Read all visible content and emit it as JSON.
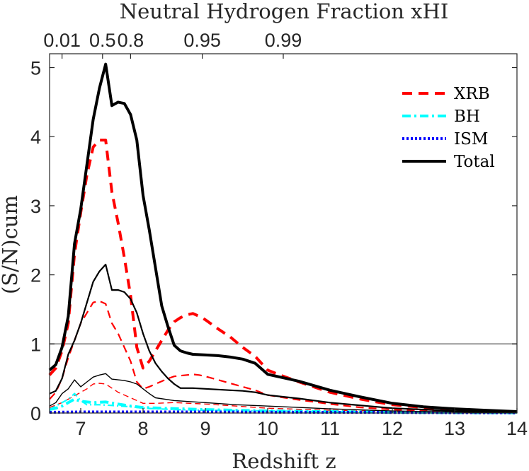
{
  "chart_data": {
    "type": "line",
    "title": "",
    "xlabel": "Redshift z",
    "ylabel": "(S/N)cum",
    "top_axis_label": "Neutral Hydrogen Fraction xHI",
    "xlim": [
      6.5,
      14
    ],
    "ylim": [
      0,
      5.2
    ],
    "x_ticks": [
      7,
      8,
      9,
      10,
      11,
      12,
      13,
      14
    ],
    "y_ticks": [
      0,
      1,
      2,
      3,
      4,
      5
    ],
    "top_ticks": [
      {
        "label": "0.01",
        "z": 6.7
      },
      {
        "label": "0.5",
        "z": 7.35
      },
      {
        "label": "0.8",
        "z": 7.8
      },
      {
        "label": "0.95",
        "z": 8.95
      },
      {
        "label": "0.99",
        "z": 10.25
      }
    ],
    "reference_line": {
      "y": 1,
      "color": "#999999"
    },
    "legend": {
      "placement": "top-right",
      "entries": [
        {
          "label": "XRB",
          "color": "#ff0000",
          "style": "dashed"
        },
        {
          "label": "BH",
          "color": "#00ffff",
          "style": "dashdot"
        },
        {
          "label": "ISM",
          "color": "#0000ff",
          "style": "dotted"
        },
        {
          "label": "Total",
          "color": "#000000",
          "style": "solid"
        }
      ]
    },
    "series": [
      {
        "name": "XRB",
        "variant": "thick",
        "color": "#ff0000",
        "style": "dashed",
        "x": [
          6.5,
          6.6,
          6.7,
          6.8,
          6.9,
          7.0,
          7.1,
          7.2,
          7.3,
          7.4,
          7.5,
          7.6,
          7.7,
          7.8,
          7.9,
          8.0,
          8.1,
          8.2,
          8.3,
          8.4,
          8.5,
          8.6,
          8.7,
          8.8,
          8.9,
          9.0,
          9.2,
          9.4,
          9.6,
          9.8,
          10.0,
          10.2,
          10.5,
          11.0,
          11.5,
          12.0,
          12.5,
          13.0,
          13.5,
          14.0
        ],
        "y": [
          0.55,
          0.65,
          0.9,
          1.3,
          2.3,
          2.9,
          3.45,
          3.85,
          3.95,
          3.95,
          3.2,
          2.75,
          2.25,
          1.7,
          0.95,
          0.65,
          0.75,
          0.9,
          1.05,
          1.2,
          1.32,
          1.38,
          1.42,
          1.44,
          1.4,
          1.35,
          1.22,
          1.1,
          0.95,
          0.82,
          0.62,
          0.55,
          0.45,
          0.3,
          0.2,
          0.12,
          0.08,
          0.05,
          0.03,
          0.01
        ]
      },
      {
        "name": "XRB",
        "variant": "thin",
        "color": "#ff0000",
        "style": "dashed",
        "x": [
          6.5,
          6.6,
          6.7,
          6.8,
          6.9,
          7.0,
          7.1,
          7.2,
          7.3,
          7.4,
          7.5,
          7.6,
          7.7,
          7.8,
          7.9,
          8.0,
          8.1,
          8.2,
          8.3,
          8.4,
          8.5,
          8.6,
          8.7,
          8.8,
          8.9,
          9.0,
          9.2,
          9.4,
          9.6,
          9.8,
          10.0,
          10.2,
          10.5,
          11.0,
          11.5,
          12.0,
          12.5,
          13.0,
          13.5,
          14.0
        ],
        "y": [
          0.2,
          0.3,
          0.5,
          0.8,
          1.05,
          1.3,
          1.45,
          1.6,
          1.62,
          1.58,
          1.3,
          1.15,
          0.95,
          0.75,
          0.45,
          0.35,
          0.38,
          0.42,
          0.46,
          0.5,
          0.53,
          0.54,
          0.55,
          0.56,
          0.55,
          0.53,
          0.48,
          0.43,
          0.38,
          0.33,
          0.26,
          0.23,
          0.19,
          0.13,
          0.08,
          0.05,
          0.03,
          0.02,
          0.01,
          0.005
        ]
      },
      {
        "name": "XRB",
        "variant": "faint",
        "color": "#ff0000",
        "style": "dashed",
        "x": [
          6.5,
          6.7,
          6.9,
          7.1,
          7.2,
          7.3,
          7.4,
          7.5,
          7.6,
          7.8,
          8.0,
          8.2,
          8.5,
          9.0,
          9.5,
          10.0,
          11.0,
          12.0,
          13.0,
          14.0
        ],
        "y": [
          0.08,
          0.15,
          0.25,
          0.35,
          0.42,
          0.43,
          0.42,
          0.36,
          0.3,
          0.22,
          0.14,
          0.14,
          0.15,
          0.13,
          0.1,
          0.07,
          0.04,
          0.02,
          0.01,
          0.005
        ]
      },
      {
        "name": "BH",
        "variant": "thick",
        "color": "#00ffff",
        "style": "dashdot",
        "x": [
          6.5,
          6.6,
          6.7,
          6.8,
          6.9,
          7.0,
          7.2,
          7.4,
          7.6,
          7.8,
          8.0,
          8.3,
          8.6,
          9.0,
          9.5,
          10.0,
          11.0,
          12.0,
          13.0,
          14.0
        ],
        "y": [
          0.05,
          0.07,
          0.1,
          0.15,
          0.2,
          0.17,
          0.15,
          0.16,
          0.13,
          0.1,
          0.08,
          0.07,
          0.06,
          0.05,
          0.04,
          0.03,
          0.02,
          0.01,
          0.005,
          0.003
        ]
      },
      {
        "name": "BH",
        "variant": "thin",
        "color": "#00ffff",
        "style": "dashdot",
        "x": [
          6.5,
          6.6,
          6.7,
          6.8,
          6.9,
          7.0,
          7.1,
          7.3,
          7.5,
          7.8,
          8.0,
          8.5,
          9.0,
          10.0,
          11.0,
          12.0,
          13.0,
          14.0
        ],
        "y": [
          0.05,
          0.1,
          0.15,
          0.2,
          0.28,
          0.18,
          0.12,
          0.12,
          0.11,
          0.09,
          0.07,
          0.05,
          0.04,
          0.03,
          0.02,
          0.01,
          0.005,
          0.002
        ]
      },
      {
        "name": "ISM",
        "variant": "thick",
        "color": "#0000ff",
        "style": "dotted",
        "x": [
          6.5,
          7.0,
          8.0,
          9.0,
          10.0,
          11.0,
          12.0,
          13.0,
          14.0
        ],
        "y": [
          0.01,
          0.015,
          0.015,
          0.015,
          0.012,
          0.01,
          0.008,
          0.005,
          0.003
        ]
      },
      {
        "name": "Total",
        "variant": "thick",
        "color": "#000000",
        "style": "solid",
        "x": [
          6.5,
          6.6,
          6.7,
          6.8,
          6.9,
          7.0,
          7.1,
          7.2,
          7.3,
          7.4,
          7.5,
          7.6,
          7.7,
          7.8,
          7.9,
          8.0,
          8.1,
          8.2,
          8.3,
          8.4,
          8.5,
          8.6,
          8.7,
          8.8,
          9.0,
          9.2,
          9.4,
          9.6,
          9.8,
          10.0,
          10.2,
          10.5,
          11.0,
          11.5,
          12.0,
          12.5,
          13.0,
          13.5,
          14.0
        ],
        "y": [
          0.62,
          0.7,
          0.95,
          1.4,
          2.45,
          2.95,
          3.6,
          4.25,
          4.7,
          5.05,
          4.45,
          4.5,
          4.48,
          4.32,
          3.95,
          3.15,
          2.65,
          2.1,
          1.55,
          1.25,
          0.98,
          0.9,
          0.87,
          0.85,
          0.84,
          0.83,
          0.81,
          0.78,
          0.72,
          0.56,
          0.52,
          0.46,
          0.33,
          0.23,
          0.14,
          0.09,
          0.06,
          0.04,
          0.02
        ]
      },
      {
        "name": "Total",
        "variant": "thin",
        "color": "#000000",
        "style": "solid",
        "x": [
          6.5,
          6.6,
          6.7,
          6.8,
          6.9,
          7.0,
          7.1,
          7.2,
          7.3,
          7.4,
          7.5,
          7.6,
          7.7,
          7.8,
          7.9,
          8.0,
          8.1,
          8.2,
          8.3,
          8.4,
          8.5,
          8.6,
          8.7,
          8.8,
          9.0,
          9.2,
          9.4,
          9.6,
          9.8,
          10.0,
          10.2,
          10.5,
          11.0,
          11.5,
          12.0,
          12.5,
          13.0,
          13.5,
          14.0
        ],
        "y": [
          0.28,
          0.32,
          0.5,
          0.85,
          1.05,
          1.3,
          1.6,
          1.9,
          2.05,
          2.15,
          1.78,
          1.78,
          1.75,
          1.65,
          1.45,
          1.15,
          0.9,
          0.72,
          0.6,
          0.5,
          0.42,
          0.36,
          0.36,
          0.36,
          0.35,
          0.34,
          0.33,
          0.32,
          0.3,
          0.26,
          0.24,
          0.21,
          0.15,
          0.11,
          0.07,
          0.05,
          0.03,
          0.02,
          0.01
        ]
      },
      {
        "name": "Total",
        "variant": "faint",
        "color": "#000000",
        "style": "solid",
        "x": [
          6.5,
          6.6,
          6.7,
          6.8,
          6.9,
          7.0,
          7.1,
          7.2,
          7.3,
          7.4,
          7.5,
          7.6,
          7.7,
          7.8,
          7.9,
          8.0,
          8.1,
          8.2,
          8.5,
          9.0,
          9.5,
          10.0,
          11.0,
          12.0,
          13.0,
          14.0
        ],
        "y": [
          0.1,
          0.15,
          0.28,
          0.35,
          0.48,
          0.38,
          0.45,
          0.52,
          0.55,
          0.57,
          0.49,
          0.48,
          0.47,
          0.45,
          0.42,
          0.35,
          0.28,
          0.22,
          0.18,
          0.15,
          0.12,
          0.1,
          0.06,
          0.03,
          0.015,
          0.005
        ]
      }
    ]
  }
}
